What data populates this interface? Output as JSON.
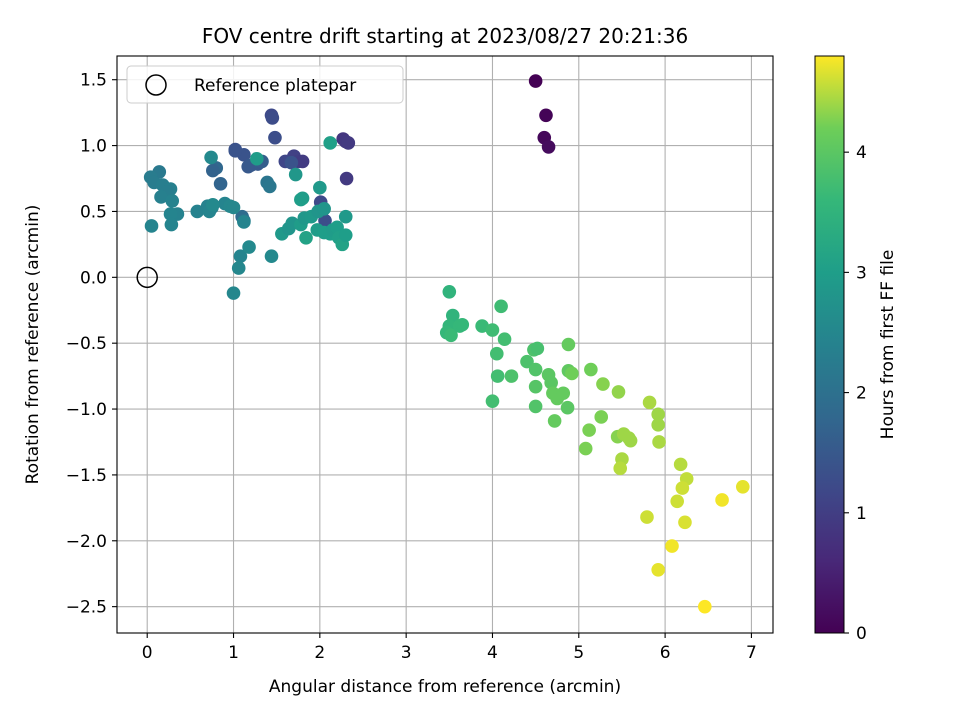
{
  "chart_data": {
    "type": "scatter",
    "title": "FOV centre drift starting at 2023/08/27 20:21:36",
    "xlabel": "Angular distance from reference (arcmin)",
    "ylabel": "Rotation from reference (arcmin)",
    "xlim": [
      -0.35,
      7.25
    ],
    "ylim": [
      -2.7,
      1.68
    ],
    "xticks": [
      0,
      1,
      2,
      3,
      4,
      5,
      6,
      7
    ],
    "yticks": [
      -2.5,
      -2.0,
      -1.5,
      -1.0,
      -0.5,
      0.0,
      0.5,
      1.0,
      1.5
    ],
    "ytick_labels": [
      "−2.5",
      "−2.0",
      "−1.5",
      "−1.0",
      "−0.5",
      "0.0",
      "0.5",
      "1.0",
      "1.5"
    ],
    "grid": true,
    "legend": {
      "position": "top-left",
      "entries": [
        "Reference platepar"
      ]
    },
    "reference_point": {
      "x": 0,
      "y": 0,
      "label": "Reference platepar"
    },
    "colorbar": {
      "label": "Hours from first FF file",
      "colormap": "viridis",
      "range": [
        0,
        4.8
      ],
      "ticks": [
        0,
        1,
        2,
        3,
        4
      ]
    },
    "series": [
      {
        "points": [
          [
            4.5,
            1.49,
            0.0
          ],
          [
            4.62,
            1.23,
            0.05
          ],
          [
            4.6,
            1.06,
            0.1
          ],
          [
            4.65,
            0.99,
            0.15
          ],
          [
            2.27,
            1.05,
            0.85
          ],
          [
            2.3,
            1.03,
            0.88
          ],
          [
            2.33,
            1.02,
            0.9
          ],
          [
            2.31,
            0.75,
            0.92
          ],
          [
            1.44,
            1.23,
            1.2
          ],
          [
            1.45,
            1.21,
            1.25
          ],
          [
            1.48,
            1.06,
            1.3
          ],
          [
            1.02,
            0.97,
            1.35
          ],
          [
            1.67,
            0.89,
            1.1
          ],
          [
            1.7,
            0.92,
            1.05
          ],
          [
            1.75,
            0.88,
            1.0
          ],
          [
            1.8,
            0.88,
            0.95
          ],
          [
            1.6,
            0.88,
            1.15
          ],
          [
            1.12,
            0.93,
            1.4
          ],
          [
            1.28,
            0.86,
            1.5
          ],
          [
            1.2,
            0.85,
            1.55
          ],
          [
            1.17,
            0.84,
            1.5
          ],
          [
            1.33,
            0.88,
            1.6
          ],
          [
            1.67,
            0.87,
            1.4
          ],
          [
            2.01,
            0.57,
            1.2
          ],
          [
            2.06,
            0.43,
            1.3
          ],
          [
            0.85,
            0.71,
            1.75
          ],
          [
            0.8,
            0.83,
            1.8
          ],
          [
            0.76,
            0.81,
            1.7
          ],
          [
            1.1,
            0.46,
            1.9
          ],
          [
            1.12,
            0.43,
            2.0
          ],
          [
            1.39,
            0.72,
            2.1
          ],
          [
            1.42,
            0.69,
            2.15
          ],
          [
            0.14,
            0.8,
            2.2
          ],
          [
            0.04,
            0.76,
            2.25
          ],
          [
            0.08,
            0.72,
            2.25
          ],
          [
            0.18,
            0.7,
            2.3
          ],
          [
            0.27,
            0.67,
            2.35
          ],
          [
            0.23,
            0.65,
            2.3
          ],
          [
            0.16,
            0.61,
            2.35
          ],
          [
            0.29,
            0.58,
            2.4
          ],
          [
            0.35,
            0.48,
            2.4
          ],
          [
            0.27,
            0.48,
            2.45
          ],
          [
            0.28,
            0.4,
            2.45
          ],
          [
            0.05,
            0.39,
            2.45
          ],
          [
            0.58,
            0.5,
            2.4
          ],
          [
            0.7,
            0.54,
            2.4
          ],
          [
            0.75,
            0.53,
            2.35
          ],
          [
            0.72,
            0.5,
            2.45
          ],
          [
            0.9,
            0.56,
            2.45
          ],
          [
            0.96,
            0.54,
            2.5
          ],
          [
            1.0,
            0.53,
            2.5
          ],
          [
            0.76,
            0.55,
            2.55
          ],
          [
            1.02,
            0.96,
            1.4
          ],
          [
            1.12,
            0.42,
            2.45
          ],
          [
            1.08,
            0.16,
            2.45
          ],
          [
            1.06,
            0.07,
            2.5
          ],
          [
            1.0,
            -0.12,
            2.5
          ],
          [
            1.18,
            0.23,
            2.55
          ],
          [
            1.44,
            0.16,
            2.55
          ],
          [
            0.74,
            0.91,
            2.55
          ],
          [
            1.27,
            0.9,
            2.95
          ],
          [
            1.56,
            0.33,
            2.9
          ],
          [
            1.64,
            0.37,
            2.8
          ],
          [
            1.68,
            0.41,
            2.8
          ],
          [
            1.78,
            0.4,
            2.95
          ],
          [
            1.82,
            0.45,
            2.85
          ],
          [
            1.9,
            0.46,
            2.9
          ],
          [
            1.98,
            0.5,
            2.8
          ],
          [
            2.05,
            0.52,
            2.8
          ],
          [
            2.0,
            0.68,
            2.9
          ],
          [
            1.8,
            0.6,
            2.95
          ],
          [
            1.72,
            0.78,
            2.85
          ],
          [
            2.12,
            1.02,
            3.05
          ],
          [
            1.97,
            0.36,
            2.95
          ],
          [
            2.05,
            0.34,
            3.0
          ],
          [
            2.12,
            0.33,
            3.0
          ],
          [
            2.15,
            0.36,
            2.95
          ],
          [
            2.2,
            0.38,
            3.0
          ],
          [
            2.22,
            0.3,
            3.05
          ],
          [
            2.26,
            0.25,
            3.1
          ],
          [
            2.3,
            0.32,
            3.0
          ],
          [
            2.3,
            0.46,
            2.9
          ],
          [
            1.84,
            0.3,
            3.1
          ],
          [
            1.78,
            0.59,
            3.0
          ],
          [
            3.5,
            -0.11,
            3.5
          ],
          [
            3.54,
            -0.29,
            3.5
          ],
          [
            3.5,
            -0.37,
            3.55
          ],
          [
            3.47,
            -0.42,
            3.6
          ],
          [
            3.52,
            -0.44,
            3.65
          ],
          [
            3.62,
            -0.37,
            3.6
          ],
          [
            3.65,
            -0.36,
            3.6
          ],
          [
            3.88,
            -0.37,
            3.65
          ],
          [
            4.0,
            -0.4,
            3.7
          ],
          [
            4.1,
            -0.22,
            3.7
          ],
          [
            4.14,
            -0.47,
            3.75
          ],
          [
            4.05,
            -0.58,
            3.75
          ],
          [
            4.06,
            -0.75,
            3.75
          ],
          [
            4.22,
            -0.75,
            3.85
          ],
          [
            4.0,
            -0.94,
            3.75
          ],
          [
            4.4,
            -0.64,
            3.85
          ],
          [
            4.48,
            -0.55,
            3.85
          ],
          [
            4.52,
            -0.54,
            3.8
          ],
          [
            4.5,
            -0.7,
            3.9
          ],
          [
            4.5,
            -0.83,
            3.95
          ],
          [
            4.5,
            -0.98,
            3.9
          ],
          [
            4.65,
            -0.74,
            4.0
          ],
          [
            4.68,
            -0.8,
            4.0
          ],
          [
            4.7,
            -0.88,
            4.1
          ],
          [
            4.75,
            -0.92,
            4.1
          ],
          [
            4.82,
            -0.88,
            4.1
          ],
          [
            4.87,
            -0.99,
            4.0
          ],
          [
            4.88,
            -0.51,
            4.1
          ],
          [
            4.88,
            -0.71,
            4.05
          ],
          [
            4.92,
            -0.73,
            4.2
          ],
          [
            4.72,
            -1.09,
            4.1
          ],
          [
            5.08,
            -1.3,
            4.25
          ],
          [
            5.12,
            -1.16,
            4.25
          ],
          [
            5.14,
            -0.7,
            4.2
          ],
          [
            5.26,
            -1.06,
            4.25
          ],
          [
            5.28,
            -0.81,
            4.3
          ],
          [
            5.46,
            -0.87,
            4.35
          ],
          [
            5.45,
            -1.21,
            4.3
          ],
          [
            5.52,
            -1.19,
            4.4
          ],
          [
            5.58,
            -1.22,
            4.4
          ],
          [
            5.6,
            -1.24,
            4.4
          ],
          [
            5.5,
            -1.38,
            4.45
          ],
          [
            5.48,
            -1.45,
            4.5
          ],
          [
            5.82,
            -0.95,
            4.45
          ],
          [
            5.92,
            -1.04,
            4.4
          ],
          [
            5.92,
            -1.12,
            4.4
          ],
          [
            5.93,
            -1.25,
            4.45
          ],
          [
            5.79,
            -1.82,
            4.6
          ],
          [
            6.18,
            -1.42,
            4.5
          ],
          [
            6.25,
            -1.53,
            4.55
          ],
          [
            6.2,
            -1.6,
            4.6
          ],
          [
            6.14,
            -1.7,
            4.6
          ],
          [
            6.23,
            -1.86,
            4.65
          ],
          [
            6.08,
            -2.04,
            4.75
          ],
          [
            5.92,
            -2.22,
            4.7
          ],
          [
            6.66,
            -1.69,
            4.75
          ],
          [
            6.9,
            -1.59,
            4.7
          ],
          [
            6.46,
            -2.5,
            4.8
          ]
        ]
      }
    ]
  }
}
